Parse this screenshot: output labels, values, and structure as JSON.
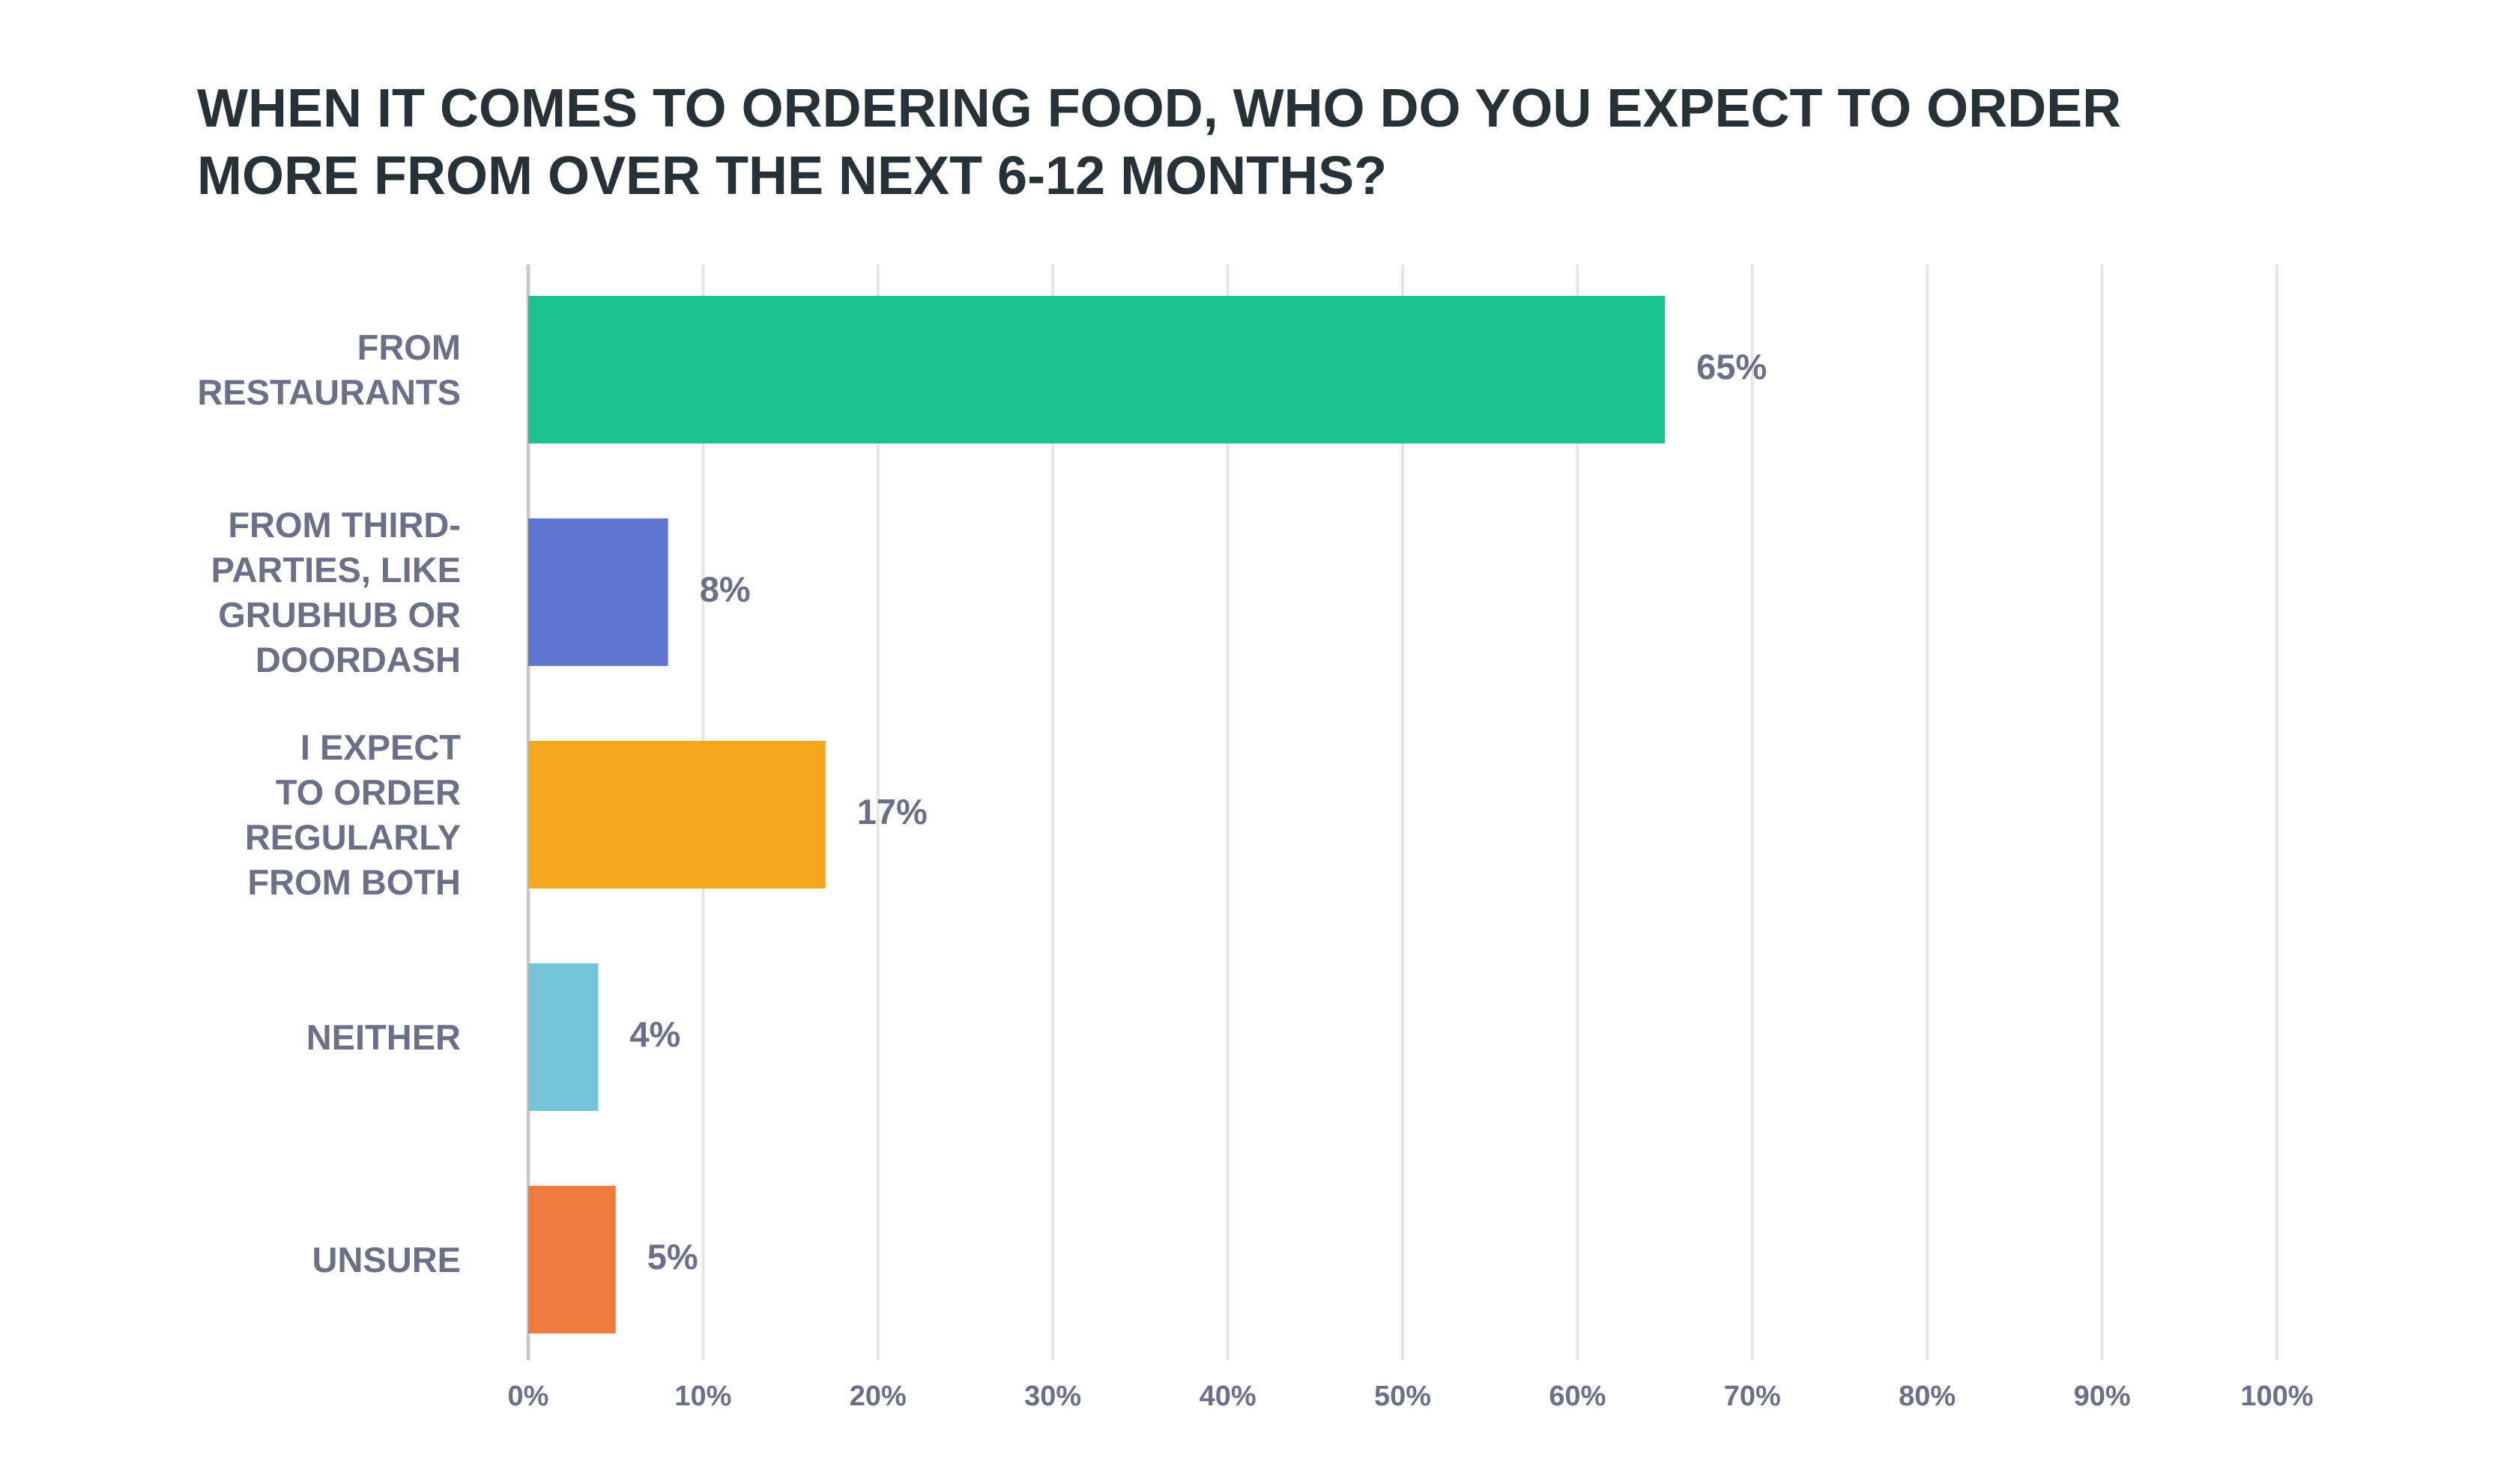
{
  "chart_data": {
    "type": "hbar",
    "title": "WHEN IT COMES TO ORDERING FOOD, WHO DO YOU EXPECT TO ORDER\nMORE FROM OVER THE NEXT 6-12 MONTHS?",
    "categories": [
      "FROM\nRESTAURANTS",
      "FROM THIRD-\nPARTIES, LIKE\nGRUBHUB OR\nDOORDASH",
      "I EXPECT\nTO ORDER\nREGULARLY\nFROM BOTH",
      "NEITHER",
      "UNSURE"
    ],
    "values": [
      65,
      8,
      17,
      4,
      5
    ],
    "value_labels": [
      "65%",
      "8%",
      "17%",
      "4%",
      "5%"
    ],
    "colors": [
      "#1bc48f",
      "#5f77d1",
      "#f3a81f",
      "#74c3d6",
      "#f07a42"
    ],
    "xlim": [
      0,
      100
    ],
    "xticks": [
      {
        "value": 0,
        "label": "0%"
      },
      {
        "value": 10,
        "label": "10%"
      },
      {
        "value": 20,
        "label": "20%"
      },
      {
        "value": 30,
        "label": "30%"
      },
      {
        "value": 40,
        "label": "40%"
      },
      {
        "value": 50,
        "label": "50%"
      },
      {
        "value": 60,
        "label": "60%"
      },
      {
        "value": 70,
        "label": "70%"
      },
      {
        "value": 80,
        "label": "80%"
      },
      {
        "value": 90,
        "label": "90%"
      },
      {
        "value": 100,
        "label": "100%"
      }
    ],
    "grid": true
  }
}
